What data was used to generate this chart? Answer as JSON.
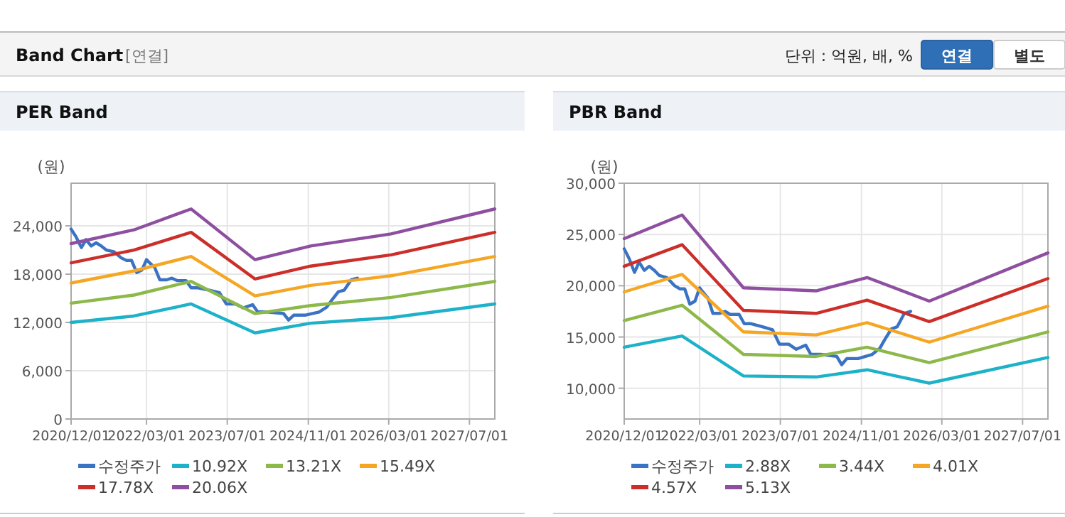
{
  "chart_data": [
    {
      "type": "other",
      "title": "Band Chart",
      "subtitle": "[연결]",
      "annotations": [
        "단위 : 억원, 배, %",
        "연결",
        "별도"
      ]
    },
    {
      "type": "line",
      "title": "PER Band",
      "ylabel": "(원)",
      "legend": "bottom",
      "grid": true,
      "marker": "none",
      "line_style": "solid",
      "xlim": [
        "2020-12-01",
        "2027-12-01"
      ],
      "xticks": [
        {
          "value": "2020-12-01",
          "label": "2020/12/01"
        },
        {
          "value": "2022-03-01",
          "label": "2022/03/01"
        },
        {
          "value": "2023-07-01",
          "label": "2023/07/01"
        },
        {
          "value": "2024-11-01",
          "label": "2024/11/01"
        },
        {
          "value": "2026-03-01",
          "label": "2026/03/01"
        },
        {
          "value": "2027-07-01",
          "label": "2027/07/01"
        }
      ],
      "ylim": [
        0,
        29300
      ],
      "yticks": [
        0,
        {
          "value": 6000,
          "label": "6,000"
        },
        {
          "value": 12000,
          "label": "12,000"
        },
        {
          "value": 18000,
          "label": "18,000"
        },
        {
          "value": 24000,
          "label": "24,000"
        }
      ],
      "x": [
        "2020-12-01",
        "2021-12-15",
        "2022-11-25",
        "2023-12-15",
        "2024-11-15",
        "2026-03-15",
        "2027-12-01"
      ],
      "series": [
        {
          "name": "수정주가",
          "color": "#3a73c4",
          "x": [
            "2020-12-01",
            "2021-01-01",
            "2021-02-01",
            "2021-03-01",
            "2021-04-01",
            "2021-05-01",
            "2021-06-01",
            "2021-07-01",
            "2021-08-15",
            "2021-10-01",
            "2021-11-01",
            "2021-12-01",
            "2022-01-01",
            "2022-02-01",
            "2022-03-01",
            "2022-03-20",
            "2022-04-20",
            "2022-05-20",
            "2022-07-01",
            "2022-08-01",
            "2022-09-01",
            "2022-10-25",
            "2022-11-25",
            "2023-01-05",
            "2023-03-15",
            "2023-05-15",
            "2023-06-25",
            "2023-08-20",
            "2023-10-05",
            "2023-12-01",
            "2024-01-01",
            "2024-02-28",
            "2024-04-22",
            "2024-06-05",
            "2024-07-05",
            "2024-08-05",
            "2024-10-12",
            "2025-01-05",
            "2025-02-20",
            "2025-03-20",
            "2025-05-01",
            "2025-06-05",
            "2025-06-28",
            "2025-07-18",
            "2025-08-25"
          ],
          "values": [
            23600,
            22600,
            21300,
            22300,
            21500,
            21900,
            21500,
            21000,
            20800,
            20000,
            19700,
            19700,
            18200,
            18500,
            19800,
            19400,
            18800,
            17300,
            17300,
            17500,
            17200,
            17200,
            16300,
            16300,
            16000,
            15700,
            14300,
            14300,
            13800,
            14200,
            13300,
            13300,
            13200,
            13100,
            12300,
            12900,
            12900,
            13300,
            13900,
            14700,
            15800,
            16000,
            16700,
            17300,
            17500
          ]
        },
        {
          "name": "10.92X",
          "color": "#1db2c8",
          "values": [
            12000,
            12800,
            14300,
            10700,
            11900,
            12600,
            14300
          ]
        },
        {
          "name": "13.21X",
          "color": "#8db84a",
          "values": [
            14400,
            15400,
            17100,
            13100,
            14100,
            15100,
            17100
          ]
        },
        {
          "name": "15.49X",
          "color": "#f5a623",
          "values": [
            16900,
            18400,
            20200,
            15300,
            16600,
            17800,
            20200
          ]
        },
        {
          "name": "17.78X",
          "color": "#cc2f2a",
          "values": [
            19400,
            21000,
            23200,
            17400,
            19000,
            20400,
            23200
          ]
        },
        {
          "name": "20.06X",
          "color": "#8e4fa0",
          "values": [
            21800,
            23500,
            26100,
            19800,
            21500,
            23000,
            26100
          ]
        }
      ]
    },
    {
      "type": "line",
      "title": "PBR Band",
      "ylabel": "(원)",
      "legend": "bottom",
      "grid": true,
      "marker": "none",
      "line_style": "solid",
      "xlim": [
        "2020-12-01",
        "2027-12-01"
      ],
      "xticks": [
        {
          "value": "2020-12-01",
          "label": "2020/12/01"
        },
        {
          "value": "2022-03-01",
          "label": "2022/03/01"
        },
        {
          "value": "2023-07-01",
          "label": "2023/07/01"
        },
        {
          "value": "2024-11-01",
          "label": "2024/11/01"
        },
        {
          "value": "2026-03-01",
          "label": "2026/03/01"
        },
        {
          "value": "2027-07-01",
          "label": "2027/07/01"
        }
      ],
      "ylim": [
        7000,
        30000
      ],
      "yticks": [
        {
          "value": 10000,
          "label": "10,000"
        },
        {
          "value": 15000,
          "label": "15,000"
        },
        {
          "value": 20000,
          "label": "20,000"
        },
        {
          "value": 25000,
          "label": "25,000"
        },
        {
          "value": 30000,
          "label": "30,000"
        }
      ],
      "x": [
        "2020-12-01",
        "2021-11-15",
        "2022-11-20",
        "2024-02-01",
        "2024-12-05",
        "2025-12-15",
        "2027-12-01"
      ],
      "series": [
        {
          "name": "수정주가",
          "color": "#3a73c4",
          "x": [
            "2020-12-01",
            "2021-01-01",
            "2021-02-01",
            "2021-03-01",
            "2021-04-01",
            "2021-05-01",
            "2021-06-01",
            "2021-07-01",
            "2021-08-15",
            "2021-10-01",
            "2021-11-01",
            "2021-12-01",
            "2022-01-01",
            "2022-02-01",
            "2022-03-01",
            "2022-03-20",
            "2022-04-20",
            "2022-05-20",
            "2022-07-01",
            "2022-08-01",
            "2022-09-01",
            "2022-10-25",
            "2022-11-25",
            "2023-01-05",
            "2023-03-15",
            "2023-05-15",
            "2023-06-25",
            "2023-08-20",
            "2023-10-05",
            "2023-12-01",
            "2024-01-01",
            "2024-02-28",
            "2024-04-22",
            "2024-06-05",
            "2024-07-05",
            "2024-08-05",
            "2024-10-12",
            "2025-01-05",
            "2025-02-20",
            "2025-03-20",
            "2025-05-01",
            "2025-06-05",
            "2025-06-28",
            "2025-07-18",
            "2025-08-25"
          ],
          "values": [
            23600,
            22600,
            21300,
            22300,
            21500,
            21900,
            21500,
            21000,
            20800,
            20000,
            19700,
            19700,
            18200,
            18500,
            19800,
            19400,
            18800,
            17300,
            17300,
            17500,
            17200,
            17200,
            16300,
            16300,
            16000,
            15700,
            14300,
            14300,
            13800,
            14200,
            13300,
            13300,
            13200,
            13100,
            12300,
            12900,
            12900,
            13300,
            13900,
            14700,
            15800,
            16000,
            16700,
            17300,
            17500
          ]
        },
        {
          "name": "2.88X",
          "color": "#1db2c8",
          "values": [
            14000,
            15100,
            11200,
            11100,
            11800,
            10500,
            13000
          ]
        },
        {
          "name": "3.44X",
          "color": "#8db84a",
          "values": [
            16600,
            18100,
            13300,
            13100,
            14000,
            12500,
            15500
          ]
        },
        {
          "name": "4.01X",
          "color": "#f5a623",
          "values": [
            19400,
            21100,
            15500,
            15200,
            16400,
            14500,
            18000
          ]
        },
        {
          "name": "4.57X",
          "color": "#cc2f2a",
          "values": [
            21900,
            24000,
            17600,
            17300,
            18600,
            16500,
            20700
          ]
        },
        {
          "name": "5.13X",
          "color": "#8e4fa0",
          "values": [
            24600,
            26900,
            19800,
            19500,
            20800,
            18500,
            23200
          ]
        }
      ]
    }
  ]
}
